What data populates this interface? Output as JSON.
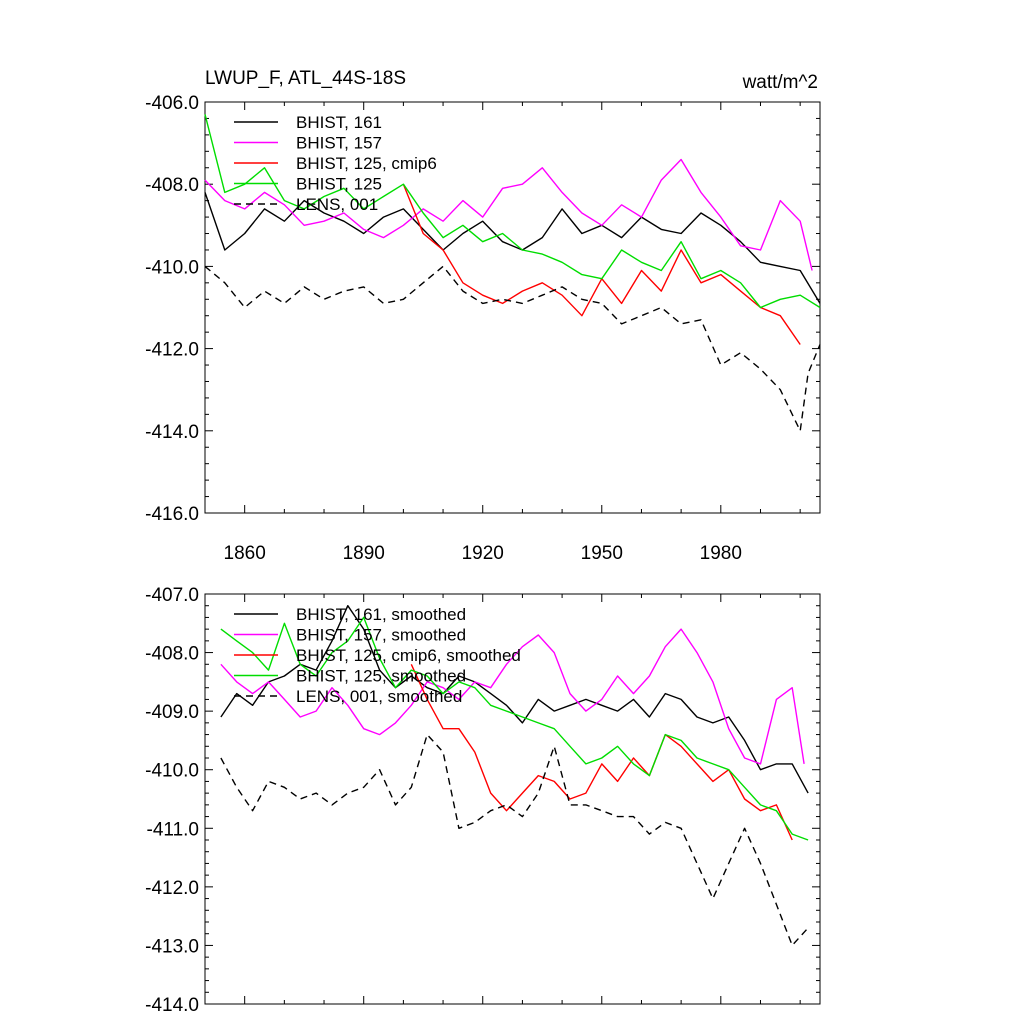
{
  "figure": {
    "title": "LWUP_F, ATL_44S-18S",
    "units": "watt/m^2"
  },
  "chart_data": [
    {
      "type": "line",
      "title": "LWUP_F, ATL_44S-18S",
      "units": "watt/m^2",
      "xlim": [
        1850,
        2005
      ],
      "ylim": [
        -416,
        -406
      ],
      "xticks": [
        1860,
        1890,
        1920,
        1950,
        1980
      ],
      "xtick_labels": [
        "1860",
        "1890",
        "1920",
        "1950",
        "1980"
      ],
      "yticks": [
        -406,
        -408,
        -410,
        -412,
        -414,
        -416
      ],
      "ytick_labels": [
        "-406.0",
        "-408.0",
        "-410.0",
        "-412.0",
        "-414.0",
        "-416.0"
      ],
      "legend_position": "top-left",
      "series": [
        {
          "name": "BHIST, 161",
          "color": "#000000",
          "dash": "solid",
          "x": [
            1850,
            1855,
            1860,
            1865,
            1870,
            1875,
            1880,
            1885,
            1890,
            1895,
            1900,
            1905,
            1910,
            1915,
            1920,
            1925,
            1930,
            1935,
            1940,
            1945,
            1950,
            1955,
            1960,
            1965,
            1970,
            1975,
            1980,
            1985,
            1990,
            1995,
            2000,
            2005
          ],
          "y": [
            -408.2,
            -409.6,
            -409.2,
            -408.6,
            -408.9,
            -408.4,
            -408.7,
            -408.9,
            -409.2,
            -408.8,
            -408.6,
            -409.1,
            -409.6,
            -409.2,
            -408.9,
            -409.4,
            -409.6,
            -409.3,
            -408.6,
            -409.2,
            -409.0,
            -409.3,
            -408.8,
            -409.1,
            -409.2,
            -408.7,
            -409.0,
            -409.4,
            -409.9,
            -410.0,
            -410.1,
            -410.9
          ]
        },
        {
          "name": "BHIST, 157",
          "color": "#ff00ff",
          "dash": "solid",
          "x": [
            1850,
            1855,
            1860,
            1865,
            1870,
            1875,
            1880,
            1885,
            1890,
            1895,
            1900,
            1905,
            1910,
            1915,
            1920,
            1925,
            1930,
            1935,
            1940,
            1945,
            1950,
            1955,
            1960,
            1965,
            1970,
            1975,
            1980,
            1985,
            1990,
            1995,
            2000,
            2003
          ],
          "y": [
            -407.9,
            -408.4,
            -408.6,
            -408.2,
            -408.5,
            -409.0,
            -408.9,
            -408.7,
            -409.1,
            -409.3,
            -409.0,
            -408.6,
            -408.9,
            -408.4,
            -408.8,
            -408.1,
            -408.0,
            -407.6,
            -408.2,
            -408.7,
            -409.0,
            -408.5,
            -408.8,
            -407.9,
            -407.4,
            -408.2,
            -408.8,
            -409.5,
            -409.6,
            -408.4,
            -408.9,
            -410.1
          ]
        },
        {
          "name": "BHIST, 125, cmip6",
          "color": "#ff0000",
          "dash": "solid",
          "x": [
            1900,
            1905,
            1910,
            1915,
            1920,
            1925,
            1930,
            1935,
            1940,
            1945,
            1950,
            1955,
            1960,
            1965,
            1970,
            1975,
            1980,
            1985,
            1990,
            1995,
            2000
          ],
          "y": [
            -408.0,
            -409.2,
            -409.6,
            -410.4,
            -410.7,
            -410.9,
            -410.6,
            -410.4,
            -410.7,
            -411.2,
            -410.3,
            -410.9,
            -410.1,
            -410.6,
            -409.6,
            -410.4,
            -410.2,
            -410.6,
            -411.0,
            -411.2,
            -411.9
          ]
        },
        {
          "name": "BHIST, 125",
          "color": "#00dd00",
          "dash": "solid",
          "x": [
            1850,
            1855,
            1860,
            1865,
            1870,
            1875,
            1880,
            1885,
            1890,
            1895,
            1900,
            1905,
            1910,
            1915,
            1920,
            1925,
            1930,
            1935,
            1940,
            1945,
            1950,
            1955,
            1960,
            1965,
            1970,
            1975,
            1980,
            1985,
            1990,
            1995,
            2000,
            2005
          ],
          "y": [
            -406.3,
            -408.2,
            -408.0,
            -407.6,
            -408.4,
            -408.6,
            -408.3,
            -408.1,
            -408.6,
            -408.3,
            -408.0,
            -408.7,
            -409.3,
            -409.0,
            -409.4,
            -409.2,
            -409.6,
            -409.7,
            -409.9,
            -410.2,
            -410.3,
            -409.6,
            -409.9,
            -410.1,
            -409.4,
            -410.3,
            -410.1,
            -410.4,
            -411.0,
            -410.8,
            -410.7,
            -411.0
          ]
        },
        {
          "name": "LENS, 001",
          "color": "#000000",
          "dash": "dashed",
          "x": [
            1850,
            1855,
            1860,
            1865,
            1870,
            1875,
            1880,
            1885,
            1890,
            1895,
            1900,
            1905,
            1910,
            1915,
            1920,
            1925,
            1930,
            1935,
            1940,
            1945,
            1950,
            1955,
            1960,
            1965,
            1970,
            1975,
            1980,
            1985,
            1990,
            1995,
            2000,
            2002,
            2005
          ],
          "y": [
            -410.0,
            -410.4,
            -411.0,
            -410.6,
            -410.9,
            -410.5,
            -410.8,
            -410.6,
            -410.5,
            -410.9,
            -410.8,
            -410.4,
            -410.0,
            -410.6,
            -410.9,
            -410.8,
            -410.9,
            -410.7,
            -410.5,
            -410.8,
            -410.9,
            -411.4,
            -411.2,
            -411.0,
            -411.4,
            -411.3,
            -412.4,
            -412.1,
            -412.5,
            -413.0,
            -414.0,
            -412.6,
            -411.9
          ]
        }
      ]
    },
    {
      "type": "line",
      "xlim": [
        1850,
        2005
      ],
      "ylim": [
        -414,
        -407
      ],
      "xticks": [
        1860,
        1890,
        1920,
        1950,
        1980
      ],
      "yticks": [
        -407,
        -408,
        -409,
        -410,
        -411,
        -412,
        -413,
        -414
      ],
      "ytick_labels": [
        "-407.0",
        "-408.0",
        "-409.0",
        "-410.0",
        "-411.0",
        "-412.0",
        "-413.0",
        "-414.0"
      ],
      "legend_position": "top-left",
      "series": [
        {
          "name": "BHIST, 161, smoothed",
          "color": "#000000",
          "dash": "solid",
          "x": [
            1854,
            1858,
            1862,
            1866,
            1870,
            1874,
            1878,
            1882,
            1886,
            1890,
            1894,
            1898,
            1902,
            1906,
            1910,
            1914,
            1918,
            1922,
            1926,
            1930,
            1934,
            1938,
            1942,
            1946,
            1950,
            1954,
            1958,
            1962,
            1966,
            1970,
            1974,
            1978,
            1982,
            1986,
            1990,
            1994,
            1998,
            2002
          ],
          "y": [
            -409.1,
            -408.7,
            -408.9,
            -408.5,
            -408.4,
            -408.2,
            -408.3,
            -407.8,
            -407.2,
            -407.6,
            -408.3,
            -408.6,
            -408.4,
            -408.6,
            -408.7,
            -408.4,
            -408.5,
            -408.7,
            -408.9,
            -409.2,
            -408.8,
            -409.0,
            -408.9,
            -408.8,
            -408.9,
            -409.0,
            -408.8,
            -409.1,
            -408.7,
            -408.8,
            -409.1,
            -409.2,
            -409.1,
            -409.5,
            -410.0,
            -409.9,
            -409.9,
            -410.4
          ]
        },
        {
          "name": "BHIST, 157, smoothed",
          "color": "#ff00ff",
          "dash": "solid",
          "x": [
            1854,
            1858,
            1862,
            1866,
            1870,
            1874,
            1878,
            1882,
            1886,
            1890,
            1894,
            1898,
            1902,
            1906,
            1910,
            1914,
            1918,
            1922,
            1926,
            1930,
            1934,
            1938,
            1942,
            1946,
            1950,
            1954,
            1958,
            1962,
            1966,
            1970,
            1974,
            1978,
            1982,
            1986,
            1990,
            1994,
            1998,
            2001
          ],
          "y": [
            -408.2,
            -408.5,
            -408.7,
            -408.5,
            -408.8,
            -409.1,
            -409.0,
            -408.6,
            -408.9,
            -409.3,
            -409.4,
            -409.2,
            -408.9,
            -408.5,
            -408.6,
            -408.8,
            -408.5,
            -408.6,
            -408.2,
            -407.9,
            -407.7,
            -408.0,
            -408.7,
            -409.0,
            -408.8,
            -408.4,
            -408.7,
            -408.4,
            -407.9,
            -407.6,
            -408.0,
            -408.5,
            -409.3,
            -409.8,
            -409.9,
            -408.8,
            -408.6,
            -409.9
          ]
        },
        {
          "name": "BHIST, 125, cmip6, smoothed",
          "color": "#ff0000",
          "dash": "solid",
          "x": [
            1902,
            1906,
            1910,
            1914,
            1918,
            1922,
            1926,
            1930,
            1934,
            1938,
            1942,
            1946,
            1950,
            1954,
            1958,
            1962,
            1966,
            1970,
            1974,
            1978,
            1982,
            1986,
            1990,
            1994,
            1998
          ],
          "y": [
            -408.2,
            -408.8,
            -409.3,
            -409.3,
            -409.7,
            -410.4,
            -410.7,
            -410.4,
            -410.1,
            -410.2,
            -410.5,
            -410.4,
            -409.9,
            -410.2,
            -409.8,
            -410.1,
            -409.4,
            -409.6,
            -409.9,
            -410.2,
            -410.0,
            -410.5,
            -410.7,
            -410.6,
            -411.2
          ]
        },
        {
          "name": "BHIST, 125, smoothed",
          "color": "#00dd00",
          "dash": "solid",
          "x": [
            1854,
            1858,
            1862,
            1866,
            1870,
            1874,
            1878,
            1882,
            1886,
            1890,
            1894,
            1898,
            1902,
            1906,
            1910,
            1914,
            1918,
            1922,
            1926,
            1930,
            1934,
            1938,
            1942,
            1946,
            1950,
            1954,
            1958,
            1962,
            1966,
            1970,
            1974,
            1978,
            1982,
            1986,
            1990,
            1994,
            1998,
            2002
          ],
          "y": [
            -407.6,
            -407.8,
            -408.0,
            -408.3,
            -407.5,
            -408.2,
            -408.4,
            -408.0,
            -407.8,
            -407.4,
            -408.1,
            -408.6,
            -408.3,
            -408.4,
            -408.7,
            -408.5,
            -408.6,
            -408.9,
            -409.0,
            -409.1,
            -409.2,
            -409.3,
            -409.6,
            -409.9,
            -409.8,
            -409.6,
            -409.9,
            -410.1,
            -409.4,
            -409.5,
            -409.8,
            -409.9,
            -410.0,
            -410.3,
            -410.6,
            -410.7,
            -411.1,
            -411.2
          ]
        },
        {
          "name": "LENS, 001, smoothed",
          "color": "#000000",
          "dash": "dashed",
          "x": [
            1854,
            1858,
            1862,
            1866,
            1870,
            1874,
            1878,
            1882,
            1886,
            1890,
            1894,
            1898,
            1902,
            1906,
            1910,
            1914,
            1918,
            1922,
            1926,
            1930,
            1934,
            1938,
            1942,
            1946,
            1950,
            1954,
            1958,
            1962,
            1966,
            1970,
            1974,
            1978,
            1982,
            1986,
            1990,
            1994,
            1998,
            2002
          ],
          "y": [
            -409.8,
            -410.3,
            -410.7,
            -410.2,
            -410.3,
            -410.5,
            -410.4,
            -410.6,
            -410.4,
            -410.3,
            -410.0,
            -410.6,
            -410.3,
            -409.4,
            -409.7,
            -411.0,
            -410.9,
            -410.7,
            -410.6,
            -410.8,
            -410.4,
            -409.6,
            -410.6,
            -410.6,
            -410.7,
            -410.8,
            -410.8,
            -411.1,
            -410.9,
            -411.0,
            -411.6,
            -412.2,
            -411.6,
            -411.0,
            -411.6,
            -412.3,
            -413.0,
            -412.7
          ]
        }
      ]
    }
  ]
}
